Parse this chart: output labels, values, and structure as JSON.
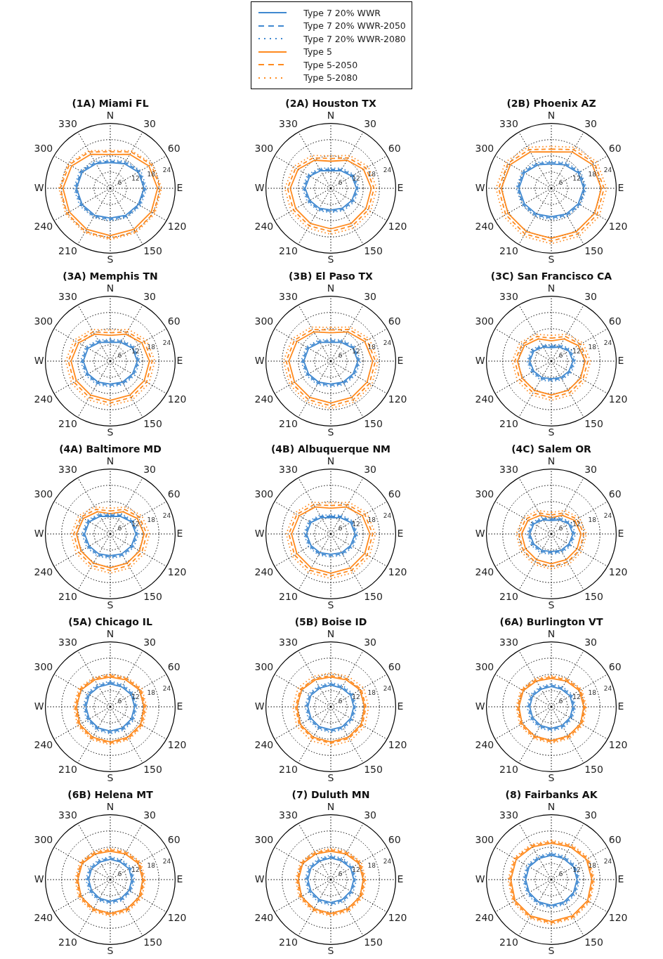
{
  "chart_data": [
    {
      "type": "radar",
      "title": "(1A) Miami FL",
      "categories": [
        "N",
        "30",
        "60",
        "E",
        "120",
        "150",
        "S",
        "210",
        "240",
        "W",
        "300",
        "330"
      ],
      "ylim": [
        0,
        24
      ],
      "yticks": [
        6,
        12,
        18,
        24
      ],
      "grid": true,
      "marker": "none",
      "legend": "top",
      "series": [
        {
          "name": "Type 7 20% WWR",
          "color": "#3f88d0",
          "line_style": "solid",
          "values": [
            9.5,
            10.5,
            12,
            12.5,
            12,
            11.5,
            11,
            11.5,
            12,
            12.5,
            12,
            10.5
          ]
        },
        {
          "name": "Type 7 20% WWR-2050",
          "color": "#3f88d0",
          "line_style": "dashed",
          "values": [
            10,
            11,
            12.5,
            13,
            12.5,
            12,
            11.5,
            12,
            12.5,
            13,
            12.5,
            11
          ]
        },
        {
          "name": "Type 7 20% WWR-2080",
          "color": "#3f88d0",
          "line_style": "dotted",
          "values": [
            10.5,
            11.5,
            13,
            13.5,
            13,
            12.5,
            12,
            12.5,
            13,
            13.5,
            13,
            11.5
          ]
        },
        {
          "name": "Type 5",
          "color": "#ff8a1e",
          "line_style": "solid",
          "values": [
            12.5,
            14.5,
            16.5,
            17.5,
            17.5,
            17.5,
            17.5,
            17.5,
            17.5,
            17.5,
            16.5,
            14.5
          ]
        },
        {
          "name": "Type 5-2050",
          "color": "#ff8a1e",
          "line_style": "dashed",
          "values": [
            13.5,
            15.5,
            17.5,
            18.5,
            18.5,
            18.5,
            18.5,
            18.5,
            18.5,
            18.5,
            17.5,
            15.5
          ]
        },
        {
          "name": "Type 5-2080",
          "color": "#ff8a1e",
          "line_style": "dotted",
          "values": [
            14,
            16,
            18,
            19,
            19,
            19,
            19,
            19,
            19,
            19,
            18,
            16
          ]
        }
      ]
    },
    {
      "type": "radar",
      "title": "(2A) Houston TX",
      "categories": [
        "N",
        "30",
        "60",
        "E",
        "120",
        "150",
        "S",
        "210",
        "240",
        "W",
        "300",
        "330"
      ],
      "ylim": [
        0,
        24
      ],
      "yticks": [
        6,
        12,
        18,
        24
      ],
      "grid": true,
      "marker": "none",
      "series": [
        {
          "color": "#3f88d0",
          "line_style": "solid",
          "values": [
            6.5,
            7.5,
            9,
            9.5,
            9,
            8.5,
            8,
            8.5,
            9,
            9.5,
            9,
            7.5
          ]
        },
        {
          "color": "#3f88d0",
          "line_style": "dashed",
          "values": [
            7,
            8,
            9.5,
            10,
            9.5,
            9,
            8.5,
            9,
            9.5,
            10,
            9.5,
            8
          ]
        },
        {
          "color": "#3f88d0",
          "line_style": "dotted",
          "values": [
            7.5,
            8.5,
            10,
            10.5,
            10,
            9.5,
            9,
            9.5,
            10,
            10.5,
            10,
            8.5
          ]
        },
        {
          "color": "#ff8a1e",
          "line_style": "solid",
          "values": [
            10,
            12,
            14,
            15,
            15,
            15,
            15,
            15,
            15,
            15,
            14,
            12
          ]
        },
        {
          "color": "#ff8a1e",
          "line_style": "dashed",
          "values": [
            11,
            13,
            15,
            16,
            16,
            16,
            16,
            16,
            16,
            16,
            15,
            13
          ]
        },
        {
          "color": "#ff8a1e",
          "line_style": "dotted",
          "values": [
            12,
            14,
            16,
            17,
            17,
            17,
            17,
            17,
            17,
            17,
            16,
            14
          ]
        }
      ]
    },
    {
      "type": "radar",
      "title": "(2B) Phoenix AZ",
      "categories": [
        "N",
        "30",
        "60",
        "E",
        "120",
        "150",
        "S",
        "210",
        "240",
        "W",
        "300",
        "330"
      ],
      "ylim": [
        0,
        24
      ],
      "yticks": [
        6,
        12,
        18,
        24
      ],
      "grid": true,
      "marker": "none",
      "series": [
        {
          "color": "#3f88d0",
          "line_style": "solid",
          "values": [
            9,
            10,
            11.5,
            12,
            11.5,
            11,
            10.5,
            11,
            11.5,
            12,
            11.5,
            10
          ]
        },
        {
          "color": "#3f88d0",
          "line_style": "dashed",
          "values": [
            9.5,
            10.5,
            12,
            12.5,
            12,
            11.5,
            11,
            11.5,
            12,
            12.5,
            12,
            10.5
          ]
        },
        {
          "color": "#3f88d0",
          "line_style": "dotted",
          "values": [
            10,
            11,
            12.5,
            13,
            12.5,
            12,
            11.5,
            12,
            12.5,
            13,
            12.5,
            11
          ]
        },
        {
          "color": "#ff8a1e",
          "line_style": "solid",
          "values": [
            13.5,
            15.5,
            17.5,
            18.5,
            18.5,
            18.5,
            18.5,
            18.5,
            18.5,
            18.5,
            17.5,
            15.5
          ]
        },
        {
          "color": "#ff8a1e",
          "line_style": "dashed",
          "values": [
            14.5,
            16.5,
            18.5,
            19.5,
            19.5,
            19.5,
            19.5,
            19.5,
            19.5,
            19.5,
            18.5,
            16.5
          ]
        },
        {
          "color": "#ff8a1e",
          "line_style": "dotted",
          "values": [
            15.5,
            17.5,
            19.5,
            20.5,
            20.5,
            20.5,
            20.5,
            20.5,
            20.5,
            20.5,
            19.5,
            17.5
          ]
        }
      ]
    },
    {
      "type": "radar",
      "title": "(3A) Memphis TN",
      "categories": [
        "N",
        "30",
        "60",
        "E",
        "120",
        "150",
        "S",
        "210",
        "240",
        "W",
        "300",
        "330"
      ],
      "ylim": [
        0,
        24
      ],
      "yticks": [
        6,
        12,
        18,
        24
      ],
      "grid": true,
      "marker": "none",
      "series": [
        {
          "color": "#3f88d0",
          "line_style": "solid",
          "values": [
            7,
            8,
            9.5,
            10,
            9.5,
            9,
            8.5,
            9,
            9.5,
            10,
            9.5,
            8
          ]
        },
        {
          "color": "#3f88d0",
          "line_style": "dashed",
          "values": [
            7.5,
            8.5,
            10,
            10.5,
            10,
            9.5,
            9,
            9.5,
            10,
            10.5,
            10,
            8.5
          ]
        },
        {
          "color": "#3f88d0",
          "line_style": "dotted",
          "values": [
            8,
            9,
            10.5,
            11,
            10.5,
            10,
            9.5,
            10,
            10.5,
            11,
            10.5,
            9
          ]
        },
        {
          "color": "#ff8a1e",
          "line_style": "solid",
          "values": [
            9.5,
            11.5,
            13.5,
            14.5,
            14.5,
            14.5,
            14.5,
            14.5,
            14.5,
            14.5,
            13.5,
            11.5
          ]
        },
        {
          "color": "#ff8a1e",
          "line_style": "dashed",
          "values": [
            10.5,
            12.5,
            14.5,
            15.5,
            15.5,
            15.5,
            15.5,
            15.5,
            15.5,
            15.5,
            14.5,
            12.5
          ]
        },
        {
          "color": "#ff8a1e",
          "line_style": "dotted",
          "values": [
            11.5,
            13.5,
            15.5,
            16.5,
            16.5,
            16.5,
            16.5,
            16.5,
            16.5,
            16.5,
            15.5,
            13.5
          ]
        }
      ]
    },
    {
      "type": "radar",
      "title": "(3B) El Paso TX",
      "categories": [
        "N",
        "30",
        "60",
        "E",
        "120",
        "150",
        "S",
        "210",
        "240",
        "W",
        "300",
        "330"
      ],
      "ylim": [
        0,
        24
      ],
      "yticks": [
        6,
        12,
        18,
        24
      ],
      "grid": true,
      "marker": "none",
      "series": [
        {
          "color": "#3f88d0",
          "line_style": "solid",
          "values": [
            7,
            8,
            9.5,
            10,
            9.5,
            9,
            8.5,
            9,
            9.5,
            10,
            9.5,
            8
          ]
        },
        {
          "color": "#3f88d0",
          "line_style": "dashed",
          "values": [
            7.5,
            8.5,
            10,
            10.5,
            10,
            9.5,
            9,
            9.5,
            10,
            10.5,
            10,
            8.5
          ]
        },
        {
          "color": "#3f88d0",
          "line_style": "dotted",
          "values": [
            8,
            9,
            10.5,
            11,
            10.5,
            10,
            9.5,
            10,
            10.5,
            11,
            10.5,
            9
          ]
        },
        {
          "color": "#ff8a1e",
          "line_style": "solid",
          "values": [
            10.5,
            12.5,
            14.5,
            15.5,
            15.5,
            15.5,
            15.5,
            15.5,
            15.5,
            15.5,
            14.5,
            12.5
          ]
        },
        {
          "color": "#ff8a1e",
          "line_style": "dashed",
          "values": [
            11.5,
            13.5,
            15.5,
            16.5,
            16.5,
            16.5,
            16.5,
            16.5,
            16.5,
            16.5,
            15.5,
            13.5
          ]
        },
        {
          "color": "#ff8a1e",
          "line_style": "dotted",
          "values": [
            12.5,
            14.5,
            16.5,
            17.5,
            17.5,
            17.5,
            17.5,
            17.5,
            17.5,
            17.5,
            16.5,
            14.5
          ]
        }
      ]
    },
    {
      "type": "radar",
      "title": "(3C) San Francisco CA",
      "categories": [
        "N",
        "30",
        "60",
        "E",
        "120",
        "150",
        "S",
        "210",
        "240",
        "W",
        "300",
        "330"
      ],
      "ylim": [
        0,
        24
      ],
      "yticks": [
        6,
        12,
        18,
        24
      ],
      "grid": true,
      "marker": "none",
      "series": [
        {
          "color": "#3f88d0",
          "line_style": "solid",
          "values": [
            5,
            6,
            7.5,
            8,
            7.5,
            7,
            6.5,
            7,
            7.5,
            8,
            7.5,
            6
          ]
        },
        {
          "color": "#3f88d0",
          "line_style": "dashed",
          "values": [
            5.5,
            6.5,
            8,
            8.5,
            8,
            7.5,
            7,
            7.5,
            8,
            8.5,
            8,
            6.5
          ]
        },
        {
          "color": "#3f88d0",
          "line_style": "dotted",
          "values": [
            6,
            7,
            8.5,
            9,
            8.5,
            8,
            7.5,
            8,
            8.5,
            9,
            8.5,
            7
          ]
        },
        {
          "color": "#ff8a1e",
          "line_style": "solid",
          "values": [
            7.5,
            9.5,
            11.5,
            12.5,
            12.5,
            12.5,
            12.5,
            12.5,
            12.5,
            12.5,
            11.5,
            9.5
          ]
        },
        {
          "color": "#ff8a1e",
          "line_style": "dashed",
          "values": [
            8.5,
            10.5,
            12.5,
            13.5,
            13.5,
            13.5,
            13.5,
            13.5,
            13.5,
            13.5,
            12.5,
            10.5
          ]
        },
        {
          "color": "#ff8a1e",
          "line_style": "dotted",
          "values": [
            9.5,
            11.5,
            13.5,
            14.5,
            14.5,
            14.5,
            14.5,
            14.5,
            14.5,
            14.5,
            13.5,
            11.5
          ]
        }
      ]
    },
    {
      "type": "radar",
      "title": "(4A) Baltimore MD",
      "categories": [
        "N",
        "30",
        "60",
        "E",
        "120",
        "150",
        "S",
        "210",
        "240",
        "W",
        "300",
        "330"
      ],
      "ylim": [
        0,
        24
      ],
      "yticks": [
        6,
        12,
        18,
        24
      ],
      "grid": true,
      "marker": "none",
      "series": [
        {
          "color": "#3f88d0",
          "line_style": "solid",
          "values": [
            6.5,
            7.5,
            9,
            9.5,
            9,
            8.5,
            8,
            8.5,
            9,
            9.5,
            9,
            7.5
          ]
        },
        {
          "color": "#3f88d0",
          "line_style": "dashed",
          "values": [
            7,
            8,
            9.5,
            10,
            9.5,
            9,
            8.5,
            9,
            9.5,
            10,
            9.5,
            8
          ]
        },
        {
          "color": "#3f88d0",
          "line_style": "dotted",
          "values": [
            7.5,
            8.5,
            10,
            10.5,
            10,
            9.5,
            9,
            9.5,
            10,
            10.5,
            10,
            8.5
          ]
        },
        {
          "color": "#ff8a1e",
          "line_style": "solid",
          "values": [
            7.5,
            9.5,
            11.5,
            12.5,
            12.5,
            12.5,
            12.5,
            12.5,
            12.5,
            12.5,
            11.5,
            9.5
          ]
        },
        {
          "color": "#ff8a1e",
          "line_style": "dashed",
          "values": [
            8.5,
            10.5,
            12.5,
            13.5,
            13.5,
            13.5,
            13.5,
            13.5,
            13.5,
            13.5,
            12.5,
            10.5
          ]
        },
        {
          "color": "#ff8a1e",
          "line_style": "dotted",
          "values": [
            9.5,
            11.5,
            13.5,
            14.5,
            14.5,
            14.5,
            14.5,
            14.5,
            14.5,
            14.5,
            13.5,
            11.5
          ]
        }
      ]
    },
    {
      "type": "radar",
      "title": "(4B) Albuquerque NM",
      "categories": [
        "N",
        "30",
        "60",
        "E",
        "120",
        "150",
        "S",
        "210",
        "240",
        "W",
        "300",
        "330"
      ],
      "ylim": [
        0,
        24
      ],
      "yticks": [
        6,
        12,
        18,
        24
      ],
      "grid": true,
      "marker": "none",
      "series": [
        {
          "color": "#3f88d0",
          "line_style": "solid",
          "values": [
            6,
            7,
            8.5,
            9,
            8.5,
            8,
            7.5,
            8,
            8.5,
            9,
            8.5,
            7
          ]
        },
        {
          "color": "#3f88d0",
          "line_style": "dashed",
          "values": [
            6.5,
            7.5,
            9,
            9.5,
            9,
            8.5,
            8,
            8.5,
            9,
            9.5,
            9,
            7.5
          ]
        },
        {
          "color": "#3f88d0",
          "line_style": "dotted",
          "values": [
            7,
            8,
            9.5,
            10,
            9.5,
            9,
            8.5,
            9,
            9.5,
            10,
            9.5,
            8
          ]
        },
        {
          "color": "#ff8a1e",
          "line_style": "solid",
          "values": [
            9.5,
            11.5,
            13.5,
            14.5,
            14.5,
            14.5,
            14.5,
            14.5,
            14.5,
            14.5,
            13.5,
            11.5
          ]
        },
        {
          "color": "#ff8a1e",
          "line_style": "dashed",
          "values": [
            10.5,
            12.5,
            14.5,
            15.5,
            15.5,
            15.5,
            15.5,
            15.5,
            15.5,
            15.5,
            14.5,
            12.5
          ]
        },
        {
          "color": "#ff8a1e",
          "line_style": "dotted",
          "values": [
            11.5,
            13.5,
            15.5,
            16.5,
            16.5,
            16.5,
            16.5,
            16.5,
            16.5,
            16.5,
            15.5,
            13.5
          ]
        }
      ]
    },
    {
      "type": "radar",
      "title": "(4C) Salem OR",
      "categories": [
        "N",
        "30",
        "60",
        "E",
        "120",
        "150",
        "S",
        "210",
        "240",
        "W",
        "300",
        "330"
      ],
      "ylim": [
        0,
        24
      ],
      "yticks": [
        6,
        12,
        18,
        24
      ],
      "grid": true,
      "marker": "none",
      "series": [
        {
          "color": "#3f88d0",
          "line_style": "solid",
          "values": [
            5,
            6,
            7.5,
            8,
            7.5,
            7,
            6.5,
            7,
            7.5,
            8,
            7.5,
            6
          ]
        },
        {
          "color": "#3f88d0",
          "line_style": "dashed",
          "values": [
            5.5,
            6.5,
            8,
            8.5,
            8,
            7.5,
            7,
            7.5,
            8,
            8.5,
            8,
            6.5
          ]
        },
        {
          "color": "#3f88d0",
          "line_style": "dotted",
          "values": [
            6,
            7,
            8.5,
            9,
            8.5,
            8,
            7.5,
            8,
            8.5,
            9,
            8.5,
            7
          ]
        },
        {
          "color": "#ff8a1e",
          "line_style": "solid",
          "values": [
            6,
            8,
            10,
            11,
            11,
            11,
            11,
            11,
            11,
            11,
            10,
            8
          ]
        },
        {
          "color": "#ff8a1e",
          "line_style": "dashed",
          "values": [
            7,
            9,
            11,
            12,
            12,
            12,
            12,
            12,
            12,
            12,
            11,
            9
          ]
        },
        {
          "color": "#ff8a1e",
          "line_style": "dotted",
          "values": [
            8,
            10,
            12,
            13,
            13,
            13,
            13,
            13,
            13,
            13,
            12,
            10
          ]
        }
      ]
    },
    {
      "type": "radar",
      "title": "(5A) Chicago IL",
      "categories": [
        "N",
        "30",
        "60",
        "E",
        "120",
        "150",
        "S",
        "210",
        "240",
        "W",
        "300",
        "330"
      ],
      "ylim": [
        0,
        24
      ],
      "yticks": [
        6,
        12,
        18,
        24
      ],
      "grid": true,
      "marker": "none",
      "series": [
        {
          "color": "#3f88d0",
          "line_style": "solid",
          "values": [
            8.5,
            8.5,
            9,
            9,
            9,
            9,
            9,
            9,
            9,
            9,
            9,
            8.5
          ]
        },
        {
          "color": "#3f88d0",
          "line_style": "dashed",
          "values": [
            9,
            9,
            9.5,
            9.5,
            9.5,
            9.5,
            9.5,
            9.5,
            9.5,
            9.5,
            9.5,
            9
          ]
        },
        {
          "color": "#3f88d0",
          "line_style": "dotted",
          "values": [
            9.5,
            9.5,
            10,
            10,
            10,
            10,
            10,
            10,
            10,
            10,
            10,
            9.5
          ]
        },
        {
          "color": "#ff8a1e",
          "line_style": "solid",
          "values": [
            11,
            11.5,
            12.5,
            12.5,
            13,
            13,
            13,
            13,
            13,
            12.5,
            12.5,
            11.5
          ]
        },
        {
          "color": "#ff8a1e",
          "line_style": "dashed",
          "values": [
            11.5,
            12,
            13,
            13,
            13.5,
            13.5,
            13.5,
            13.5,
            13.5,
            13,
            13,
            12
          ]
        },
        {
          "color": "#ff8a1e",
          "line_style": "dotted",
          "values": [
            12,
            12.5,
            13.5,
            13.5,
            14,
            14,
            14,
            14,
            14,
            13.5,
            13.5,
            12.5
          ]
        }
      ]
    },
    {
      "type": "radar",
      "title": "(5B) Boise ID",
      "categories": [
        "N",
        "30",
        "60",
        "E",
        "120",
        "150",
        "S",
        "210",
        "240",
        "W",
        "300",
        "330"
      ],
      "ylim": [
        0,
        24
      ],
      "yticks": [
        6,
        12,
        18,
        24
      ],
      "grid": true,
      "marker": "none",
      "series": [
        {
          "color": "#3f88d0",
          "line_style": "solid",
          "values": [
            8,
            8,
            8.5,
            8.5,
            8.5,
            8.5,
            8.5,
            8.5,
            8.5,
            8.5,
            8.5,
            8
          ]
        },
        {
          "color": "#3f88d0",
          "line_style": "dashed",
          "values": [
            8.5,
            8.5,
            9,
            9,
            9,
            9,
            9,
            9,
            9,
            9,
            9,
            8.5
          ]
        },
        {
          "color": "#3f88d0",
          "line_style": "dotted",
          "values": [
            9,
            9,
            9.5,
            9.5,
            9.5,
            9.5,
            9.5,
            9.5,
            9.5,
            9.5,
            9.5,
            9
          ]
        },
        {
          "color": "#ff8a1e",
          "line_style": "solid",
          "values": [
            11,
            11.5,
            12.5,
            12.5,
            13,
            13,
            13,
            13,
            13,
            12.5,
            12.5,
            11.5
          ]
        },
        {
          "color": "#ff8a1e",
          "line_style": "dashed",
          "values": [
            11.5,
            12,
            13,
            13,
            13.5,
            13.5,
            13.5,
            13.5,
            13.5,
            13,
            13,
            12
          ]
        },
        {
          "color": "#ff8a1e",
          "line_style": "dotted",
          "values": [
            12.5,
            13,
            14,
            14,
            14.5,
            14.5,
            14.5,
            14.5,
            14.5,
            14,
            14,
            13
          ]
        }
      ]
    },
    {
      "type": "radar",
      "title": "(6A) Burlington VT",
      "categories": [
        "N",
        "30",
        "60",
        "E",
        "120",
        "150",
        "S",
        "210",
        "240",
        "W",
        "300",
        "330"
      ],
      "ylim": [
        0,
        24
      ],
      "yticks": [
        6,
        12,
        18,
        24
      ],
      "grid": true,
      "marker": "none",
      "series": [
        {
          "color": "#3f88d0",
          "line_style": "solid",
          "values": [
            7.5,
            7.5,
            8,
            8,
            8,
            8,
            8,
            8,
            8,
            8,
            8,
            7.5
          ]
        },
        {
          "color": "#3f88d0",
          "line_style": "dashed",
          "values": [
            8,
            8,
            8.5,
            8.5,
            8.5,
            8.5,
            8.5,
            8.5,
            8.5,
            8.5,
            8.5,
            8
          ]
        },
        {
          "color": "#3f88d0",
          "line_style": "dotted",
          "values": [
            8.5,
            8.5,
            9,
            9,
            9,
            9,
            9,
            9,
            9,
            9,
            9,
            8.5
          ]
        },
        {
          "color": "#ff8a1e",
          "line_style": "solid",
          "values": [
            10.5,
            11,
            12,
            12,
            12.5,
            12.5,
            12.5,
            12.5,
            12.5,
            12,
            12,
            11
          ]
        },
        {
          "color": "#ff8a1e",
          "line_style": "dashed",
          "values": [
            11,
            11.5,
            12.5,
            12.5,
            13,
            13,
            13,
            13,
            13,
            12.5,
            12.5,
            11.5
          ]
        },
        {
          "color": "#ff8a1e",
          "line_style": "dotted",
          "values": [
            11.5,
            12,
            13,
            13,
            13.5,
            13.5,
            13.5,
            13.5,
            13.5,
            13,
            13,
            12
          ]
        }
      ]
    },
    {
      "type": "radar",
      "title": "(6B) Helena MT",
      "categories": [
        "N",
        "30",
        "60",
        "E",
        "120",
        "150",
        "S",
        "210",
        "240",
        "W",
        "300",
        "330"
      ],
      "ylim": [
        0,
        24
      ],
      "yticks": [
        6,
        12,
        18,
        24
      ],
      "grid": true,
      "marker": "none",
      "series": [
        {
          "color": "#3f88d0",
          "line_style": "solid",
          "values": [
            7.5,
            7.5,
            8,
            8,
            8,
            8,
            8,
            8,
            8,
            8,
            8,
            7.5
          ]
        },
        {
          "color": "#3f88d0",
          "line_style": "dashed",
          "values": [
            8,
            8,
            8.5,
            8.5,
            8.5,
            8.5,
            8.5,
            8.5,
            8.5,
            8.5,
            8.5,
            8
          ]
        },
        {
          "color": "#3f88d0",
          "line_style": "dotted",
          "values": [
            8.5,
            8.5,
            9,
            9,
            9,
            9,
            9,
            9,
            9,
            9,
            9,
            8.5
          ]
        },
        {
          "color": "#ff8a1e",
          "line_style": "solid",
          "values": [
            10.5,
            11,
            12,
            12,
            12.5,
            12.5,
            12.5,
            12.5,
            12.5,
            12,
            12,
            11
          ]
        },
        {
          "color": "#ff8a1e",
          "line_style": "dashed",
          "values": [
            11,
            11.5,
            12.5,
            12.5,
            13,
            13,
            13,
            13,
            13,
            12.5,
            12.5,
            11.5
          ]
        },
        {
          "color": "#ff8a1e",
          "line_style": "dotted",
          "values": [
            11.5,
            12,
            13,
            13,
            13.5,
            13.5,
            13.5,
            13.5,
            13.5,
            13,
            13,
            12
          ]
        }
      ]
    },
    {
      "type": "radar",
      "title": "(7) Duluth MN",
      "categories": [
        "N",
        "30",
        "60",
        "E",
        "120",
        "150",
        "S",
        "210",
        "240",
        "W",
        "300",
        "330"
      ],
      "ylim": [
        0,
        24
      ],
      "yticks": [
        6,
        12,
        18,
        24
      ],
      "grid": true,
      "marker": "none",
      "series": [
        {
          "color": "#3f88d0",
          "line_style": "solid",
          "values": [
            8,
            8,
            8.5,
            8.5,
            8.5,
            8.5,
            8.5,
            8.5,
            8.5,
            8.5,
            8.5,
            8
          ]
        },
        {
          "color": "#3f88d0",
          "line_style": "dashed",
          "values": [
            8.5,
            8.5,
            9,
            9,
            9,
            9,
            9,
            9,
            9,
            9,
            9,
            8.5
          ]
        },
        {
          "color": "#3f88d0",
          "line_style": "dotted",
          "values": [
            9,
            9,
            9.5,
            9.5,
            9.5,
            9.5,
            9.5,
            9.5,
            9.5,
            9.5,
            9.5,
            9
          ]
        },
        {
          "color": "#ff8a1e",
          "line_style": "solid",
          "values": [
            10.5,
            11,
            12,
            12,
            12.5,
            12.5,
            12.5,
            12.5,
            12.5,
            12,
            12,
            11
          ]
        },
        {
          "color": "#ff8a1e",
          "line_style": "dashed",
          "values": [
            11,
            11.5,
            12.5,
            12.5,
            13,
            13,
            13,
            13,
            13,
            12.5,
            12.5,
            11.5
          ]
        },
        {
          "color": "#ff8a1e",
          "line_style": "dotted",
          "values": [
            11.5,
            12,
            13,
            13,
            13.5,
            13.5,
            13.5,
            13.5,
            13.5,
            13,
            13,
            12
          ]
        }
      ]
    },
    {
      "type": "radar",
      "title": "(8) Fairbanks AK",
      "categories": [
        "N",
        "30",
        "60",
        "E",
        "120",
        "150",
        "S",
        "210",
        "240",
        "W",
        "300",
        "330"
      ],
      "ylim": [
        0,
        24
      ],
      "yticks": [
        6,
        12,
        18,
        24
      ],
      "grid": true,
      "marker": "none",
      "series": [
        {
          "color": "#3f88d0",
          "line_style": "solid",
          "values": [
            9,
            9,
            9.5,
            9.5,
            9.5,
            9.5,
            9.5,
            9.5,
            9.5,
            9.5,
            9.5,
            9
          ]
        },
        {
          "color": "#3f88d0",
          "line_style": "dashed",
          "values": [
            9.5,
            9.5,
            10,
            10,
            10,
            10,
            10,
            10,
            10,
            10,
            10,
            9.5
          ]
        },
        {
          "color": "#3f88d0",
          "line_style": "dotted",
          "values": [
            10,
            10,
            10.5,
            10.5,
            10.5,
            10.5,
            10.5,
            10.5,
            10.5,
            10.5,
            10.5,
            10
          ]
        },
        {
          "color": "#ff8a1e",
          "line_style": "solid",
          "values": [
            13.5,
            14,
            15,
            15,
            15.5,
            15.5,
            15.5,
            15.5,
            15.5,
            15,
            15,
            14
          ]
        },
        {
          "color": "#ff8a1e",
          "line_style": "dashed",
          "values": [
            14,
            14.5,
            15.5,
            15.5,
            16,
            16,
            16,
            16,
            16,
            15.5,
            15.5,
            14.5
          ]
        },
        {
          "color": "#ff8a1e",
          "line_style": "dotted",
          "values": [
            14.5,
            15,
            16,
            16,
            16.5,
            16.5,
            16.5,
            16.5,
            16.5,
            16,
            16,
            15
          ]
        }
      ]
    }
  ]
}
